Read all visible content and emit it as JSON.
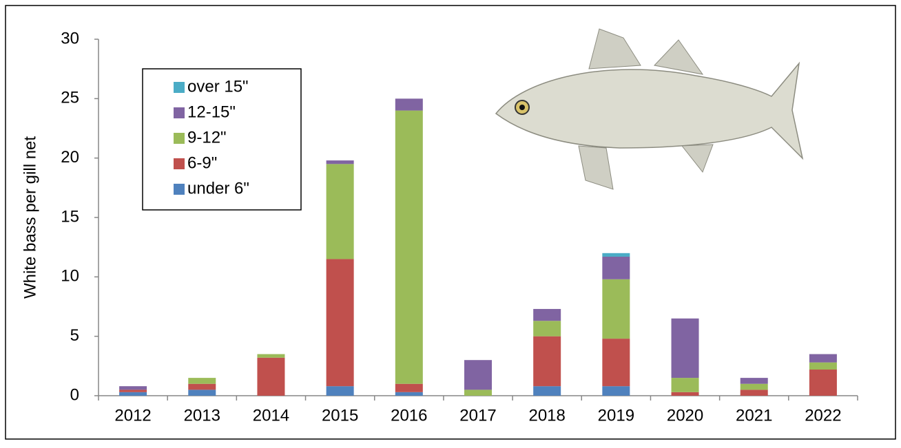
{
  "chart_data": {
    "type": "stacked_bar",
    "y_label": "White bass per gill net",
    "categories": [
      "2012",
      "2013",
      "2014",
      "2015",
      "2016",
      "2017",
      "2018",
      "2019",
      "2020",
      "2021",
      "2022"
    ],
    "series": [
      {
        "name": "under 6\"",
        "color": "#4f81bd",
        "values": [
          0.3,
          0.5,
          0,
          0.8,
          0.3,
          0,
          0.8,
          0.8,
          0,
          0,
          0
        ]
      },
      {
        "name": "6-9\"",
        "color": "#c0504d",
        "values": [
          0.2,
          0.5,
          3.2,
          10.7,
          0.7,
          0,
          4.2,
          4.0,
          0.3,
          0.5,
          2.2
        ]
      },
      {
        "name": "9-12\"",
        "color": "#9bbb59",
        "values": [
          0,
          0.5,
          0.3,
          8.0,
          23.0,
          0.5,
          1.3,
          5.0,
          1.2,
          0.5,
          0.6
        ]
      },
      {
        "name": "12-15\"",
        "color": "#8064a2",
        "values": [
          0.3,
          0,
          0,
          0.3,
          1.0,
          2.5,
          1.0,
          1.9,
          5.0,
          0.5,
          0.7
        ]
      },
      {
        "name": "over 15\"",
        "color": "#4bacc6",
        "values": [
          0,
          0,
          0,
          0,
          0,
          0,
          0,
          0.3,
          0,
          0,
          0
        ]
      }
    ],
    "ylim": [
      0,
      30
    ],
    "yticks": [
      0,
      5,
      10,
      15,
      20,
      25,
      30
    ],
    "grid": false,
    "legend": "upper-left"
  }
}
